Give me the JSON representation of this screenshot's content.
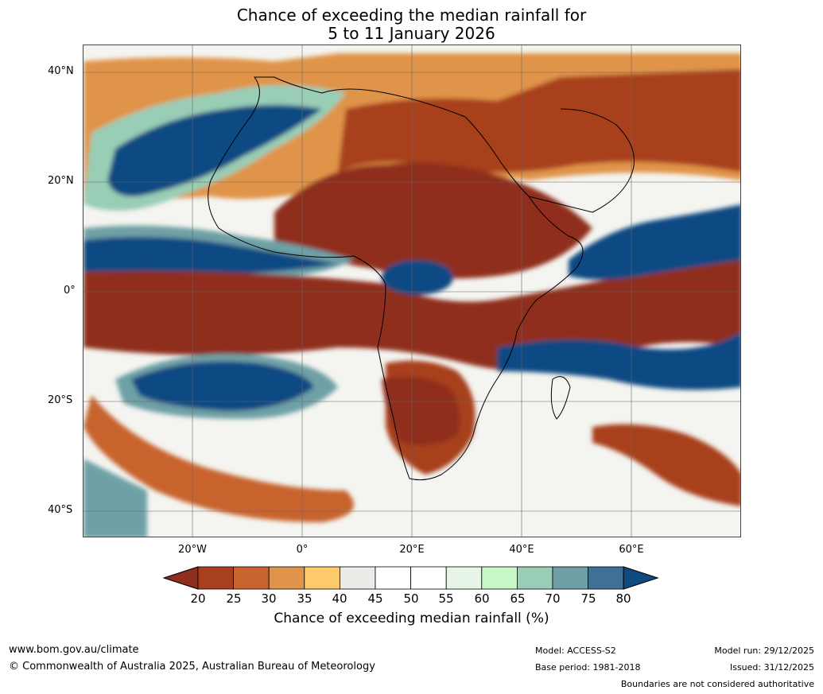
{
  "title_line1": "Chance of exceeding the median rainfall for",
  "title_line2": "5 to 11 January 2026",
  "latitude_labels": [
    "40°N",
    "20°N",
    "0°",
    "20°S",
    "40°S"
  ],
  "longitude_labels": [
    "20°W",
    "0°",
    "20°E",
    "40°E",
    "60°E"
  ],
  "legend": {
    "title": "Chance of exceeding median rainfall (%)",
    "ticks": [
      "20",
      "25",
      "30",
      "35",
      "40",
      "45",
      "50",
      "55",
      "60",
      "65",
      "70",
      "75",
      "80"
    ],
    "colors": [
      "#8f2d1e",
      "#a8401f",
      "#c8642f",
      "#e0944a",
      "#fdc96a",
      "#ecebe7",
      "#ffffff",
      "#ffffff",
      "#e6f5e8",
      "#c8f7c8",
      "#99cdb6",
      "#6ea0a6",
      "#3f7196",
      "#0f4a82"
    ]
  },
  "footer": {
    "website": "www.bom.gov.au/climate",
    "copyright": "© Commonwealth of Australia 2025, Australian Bureau of Meteorology",
    "model": "Model: ACCESS-S2",
    "base_period": "Base period: 1981-2018",
    "model_run": "Model run: 29/12/2025",
    "issued": "Issued: 31/12/2025",
    "boundaries_note": "Boundaries are not considered authoritative"
  }
}
